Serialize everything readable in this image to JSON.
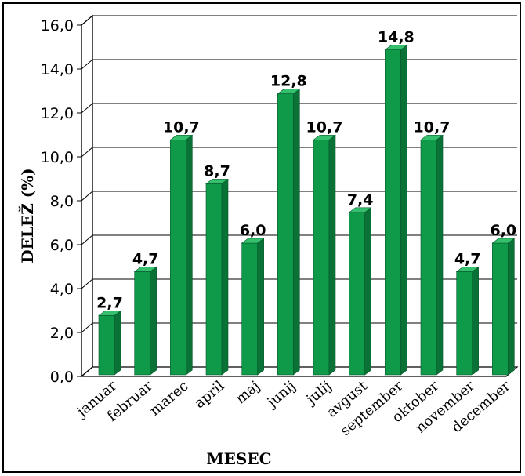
{
  "chart_data": {
    "type": "bar",
    "xlabel": "MESEC",
    "ylabel": "DELEŽ (%)",
    "categories": [
      "januar",
      "februar",
      "marec",
      "april",
      "maj",
      "junij",
      "julij",
      "avgust",
      "september",
      "oktober",
      "november",
      "december"
    ],
    "values": [
      2.7,
      4.7,
      10.7,
      8.7,
      6.0,
      12.8,
      10.7,
      7.4,
      14.8,
      10.7,
      4.7,
      6.0
    ],
    "value_labels": [
      "2,7",
      "4,7",
      "10,7",
      "8,7",
      "6,0",
      "12,8",
      "10,7",
      "7,4",
      "14,8",
      "10,7",
      "4,7",
      "6,0"
    ],
    "yticks": [
      "0,0",
      "2,0",
      "4,0",
      "6,0",
      "8,0",
      "10,0",
      "12,0",
      "14,0",
      "16,0"
    ],
    "ylim": [
      0,
      16
    ],
    "grid": true,
    "legend": "none",
    "colors": {
      "bar": "#0f9a4a",
      "bar_side": "#0a7236",
      "bar_top": "#34c06c"
    }
  }
}
